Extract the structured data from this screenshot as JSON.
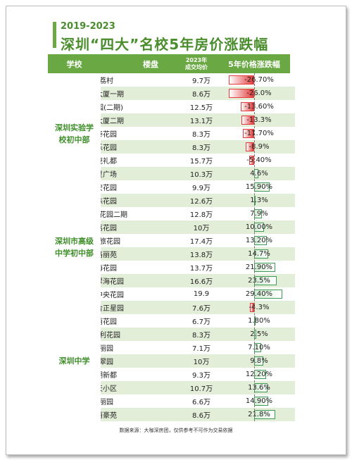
{
  "subtitle": "2019-2023",
  "title": "深圳“四大”名校5年房价涨跌幅",
  "headers": {
    "school": "学校",
    "estate": "楼盘",
    "price_line1": "2023年",
    "price_line2": "成交均价",
    "change": "5年价格涨跌幅"
  },
  "colors": {
    "green_header": "#6aa843",
    "row_alt": "#e3eed8",
    "bar_neg": "#e23b3b",
    "bar_pos": "#d3edd4",
    "bar_pos_border": "#3c9a54"
  },
  "footer": "数据来源：大咖深房团，仅供参考不可作为交易依据",
  "chart_data": {
    "type": "table",
    "groups": [
      {
        "school": "深圳实验学校初中部",
        "rows": [
          {
            "estate": "红荔村",
            "price": "9.7万",
            "change_label": "-26.70%",
            "change": -26.7
          },
          {
            "estate": "南天大厦一期",
            "price": "8.6万",
            "change_label": "-26.0%",
            "change": -26.0
          },
          {
            "estate": "百花园(二期)",
            "price": "12.5万",
            "change_label": "-13.60%",
            "change": -13.6
          },
          {
            "estate": "南天大厦二期",
            "price": "13.1万",
            "change_label": "-13.3%",
            "change": -13.3
          },
          {
            "estate": "长泰花园",
            "price": "8.3万",
            "change_label": "-11.70%",
            "change": -11.7
          },
          {
            "estate": "长乐花园",
            "price": "8.3万",
            "change_label": "-8.9%",
            "change": -8.9
          },
          {
            "estate": "金茂礼都",
            "price": "15.7万",
            "change_label": "-5.40%",
            "change": -5.4
          },
          {
            "estate": "群星广场",
            "price": "10.3万",
            "change_label": "4.6%",
            "change": 4.6
          },
          {
            "estate": "长安花园",
            "price": "9.9万",
            "change_label": "15.90%",
            "change": 15.9
          }
        ]
      },
      {
        "school": "深圳市高级中学初中部",
        "rows": [
          {
            "estate": "香珠花园",
            "price": "12.6万",
            "change_label": "1.3%",
            "change": 1.3
          },
          {
            "estate": "香榭里花园二期",
            "price": "12.8万",
            "change_label": "7.9%",
            "change": 7.9
          },
          {
            "estate": "香荔花园",
            "price": "10万",
            "change_label": "10.00%",
            "change": 10.0
          },
          {
            "estate": "港中旅花园",
            "price": "17.4万",
            "change_label": "13.20%",
            "change": 13.2
          },
          {
            "estate": "香格丽苑",
            "price": "13.8万",
            "change_label": "14.7%",
            "change": 14.7
          },
          {
            "estate": "东海花园",
            "price": "13.7万",
            "change_label": "21.90%",
            "change": 21.9
          },
          {
            "estate": "振业翠海花园",
            "price": "16.6万",
            "change_label": "23.5%",
            "change": 23.5
          },
          {
            "estate": "香域中央花园",
            "price": "19.9",
            "change_label": "29.40%",
            "change": 29.4
          }
        ]
      },
      {
        "school": "深圳中学",
        "rows": [
          {
            "estate": "鹏城合正星园",
            "price": "7.6万",
            "change_label": "-4.3%",
            "change": -4.3
          },
          {
            "estate": "柏丽花园",
            "price": "6.7万",
            "change_label": "1.80%",
            "change": 1.8
          },
          {
            "estate": "嘉多利花园",
            "price": "8.3万",
            "change_label": "2.5%",
            "change": 2.5
          },
          {
            "estate": "龙丽园",
            "price": "7.1万",
            "change_label": "7.10%",
            "change": 7.1
          },
          {
            "estate": "金翠园",
            "price": "10万",
            "change_label": "9.8%",
            "change": 9.8
          },
          {
            "estate": "嘉湖新都",
            "price": "9.3万",
            "change_label": "12.20%",
            "change": 12.2
          },
          {
            "estate": "愉天小区",
            "price": "10.7万",
            "change_label": "13.6%",
            "change": 13.6
          },
          {
            "estate": "华丽园",
            "price": "6.6万",
            "change_label": "14.90%",
            "change": 14.9
          },
          {
            "estate": "金丽豪苑",
            "price": "8.6万",
            "change_label": "21.8%",
            "change": 21.8
          }
        ]
      }
    ]
  }
}
